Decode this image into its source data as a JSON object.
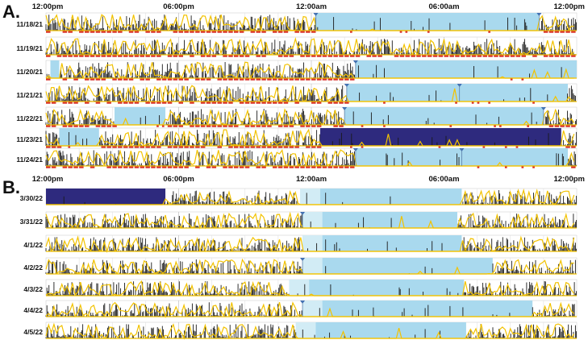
{
  "chart_data": [
    {
      "type": "actogram",
      "panel": "A.",
      "x_ticks": [
        "12:00pm",
        "06:00pm",
        "12:00am",
        "06:00am",
        "12:00pm"
      ],
      "x_range_hours": [
        0,
        24
      ],
      "grid": true,
      "activity_color": "#1a1a1a",
      "light_color": "#f2c200",
      "sleep_color": "#a9d9ee",
      "offwrist_color": "#2e2a7e",
      "rows": [
        {
          "date": "11/18/21",
          "sleep": [
            [
              12.2,
              22.3
            ]
          ],
          "offwrist": [],
          "onset_marker": 12.2,
          "offset_marker": 22.3,
          "red_bar": true
        },
        {
          "date": "11/19/21",
          "sleep": [],
          "offwrist": [],
          "onset_marker": null,
          "offset_marker": null,
          "red_bar": true
        },
        {
          "date": "11/20/21",
          "sleep": [
            [
              0.2,
              0.6
            ],
            [
              14.0,
              24.0
            ]
          ],
          "offwrist": [],
          "onset_marker": 14.0,
          "offset_marker": null,
          "red_bar": true
        },
        {
          "date": "11/21/21",
          "sleep": [
            [
              13.6,
              23.6
            ]
          ],
          "offwrist": [],
          "onset_marker": 13.6,
          "offset_marker": 18.7,
          "red_bar": true
        },
        {
          "date": "11/22/21",
          "sleep": [
            [
              3.1,
              5.4
            ],
            [
              13.5,
              22.5
            ]
          ],
          "offwrist": [],
          "onset_marker": 13.5,
          "offset_marker": 22.5,
          "red_bar": true
        },
        {
          "date": "11/23/21",
          "sleep": [
            [
              0.6,
              2.4
            ]
          ],
          "offwrist": [
            [
              12.4,
              23.3
            ]
          ],
          "onset_marker": null,
          "offset_marker": null,
          "red_bar": true
        },
        {
          "date": "11/24/21",
          "sleep": [
            [
              14.0,
              23.6
            ]
          ],
          "offwrist": [],
          "onset_marker": 14.0,
          "offset_marker": 18.8,
          "red_bar": true
        }
      ]
    },
    {
      "type": "actogram",
      "panel": "B.",
      "x_ticks": [
        "12:00pm",
        "06:00pm",
        "12:00am",
        "06:00am",
        "12:00pm"
      ],
      "x_range_hours": [
        0,
        24
      ],
      "grid": true,
      "activity_color": "#1a1a1a",
      "light_color": "#f2c200",
      "sleep_color": "#a9d9ee",
      "offwrist_color": "#2e2a7e",
      "rows": [
        {
          "date": "3/30/22",
          "sleep": [
            [
              11.5,
              18.8
            ]
          ],
          "offwrist": [
            [
              0.0,
              5.4
            ]
          ],
          "onset_marker": null,
          "offset_marker": null,
          "red_bar": false
        },
        {
          "date": "3/31/22",
          "sleep": [
            [
              11.6,
              18.6
            ]
          ],
          "offwrist": [],
          "onset_marker": 11.6,
          "offset_marker": null,
          "red_bar": false
        },
        {
          "date": "4/1/22",
          "sleep": [
            [
              11.6,
              18.8
            ]
          ],
          "offwrist": [],
          "onset_marker": null,
          "offset_marker": null,
          "red_bar": false
        },
        {
          "date": "4/2/22",
          "sleep": [
            [
              11.6,
              20.2
            ]
          ],
          "offwrist": [],
          "onset_marker": 11.6,
          "offset_marker": null,
          "red_bar": false
        },
        {
          "date": "4/3/22",
          "sleep": [
            [
              11.0,
              18.9
            ]
          ],
          "offwrist": [],
          "onset_marker": null,
          "offset_marker": null,
          "red_bar": false
        },
        {
          "date": "4/4/22",
          "sleep": [
            [
              11.6,
              22.0
            ]
          ],
          "offwrist": [],
          "onset_marker": 11.6,
          "offset_marker": null,
          "red_bar": false
        },
        {
          "date": "4/5/22",
          "sleep": [
            [
              11.3,
              19.0
            ]
          ],
          "offwrist": [],
          "onset_marker": null,
          "offset_marker": null,
          "red_bar": false
        }
      ]
    }
  ]
}
